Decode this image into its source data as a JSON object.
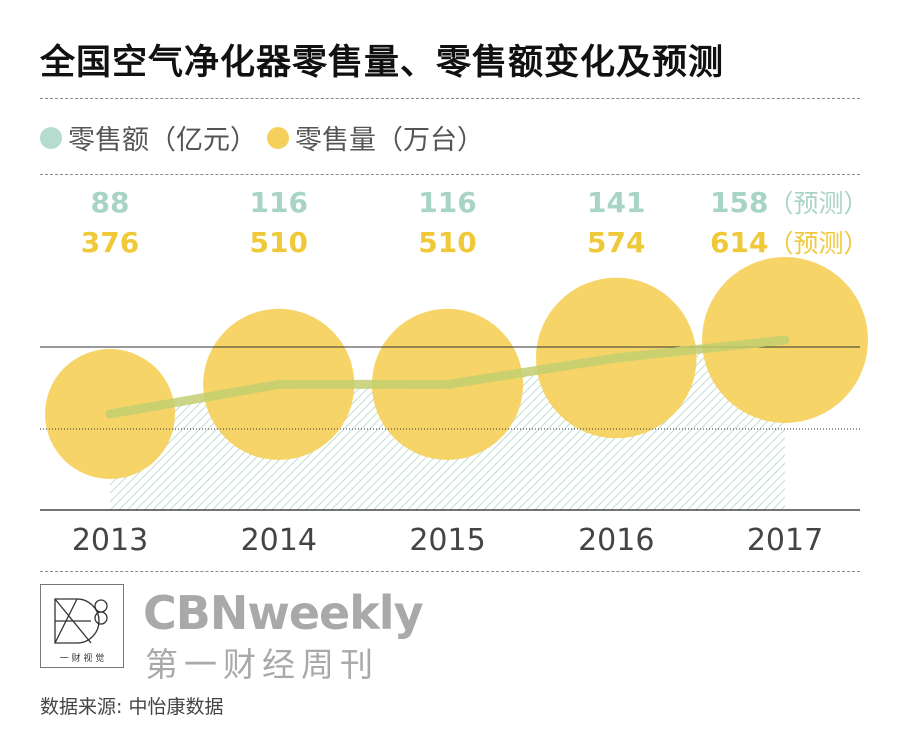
{
  "title": "全国空气净化器零售量、零售额变化及预测",
  "legend": {
    "series_sales_dollar": "零售额（亿元）",
    "series_sales_volume": "零售量（万台）"
  },
  "colors": {
    "sales_dollar": "#b5dccf",
    "sales_dollar_text": "#a8d4c6",
    "sales_volume": "#f5d15c",
    "sales_volume_text": "#f0c93a",
    "trend_line": "#c3cf71"
  },
  "chart_data": {
    "type": "line",
    "categories": [
      "2013",
      "2014",
      "2015",
      "2016",
      "2017"
    ],
    "series": [
      {
        "name": "零售额（亿元）",
        "values": [
          88,
          116,
          116,
          141,
          158
        ],
        "labels": [
          "88",
          "116",
          "116",
          "141",
          "158（预测）"
        ]
      },
      {
        "name": "零售量（万台）",
        "values": [
          376,
          510,
          510,
          574,
          614
        ],
        "labels": [
          "376",
          "510",
          "510",
          "574",
          "614（预测）"
        ]
      }
    ],
    "xlabel": "",
    "ylabel": "",
    "grid": false,
    "legend_position": "top-left"
  },
  "brand": {
    "logo_caption": "一 财 视 觉",
    "name_en": "CBNweekly",
    "name_cn": "第一财经周刊"
  },
  "source": "数据来源: 中怡康数据"
}
